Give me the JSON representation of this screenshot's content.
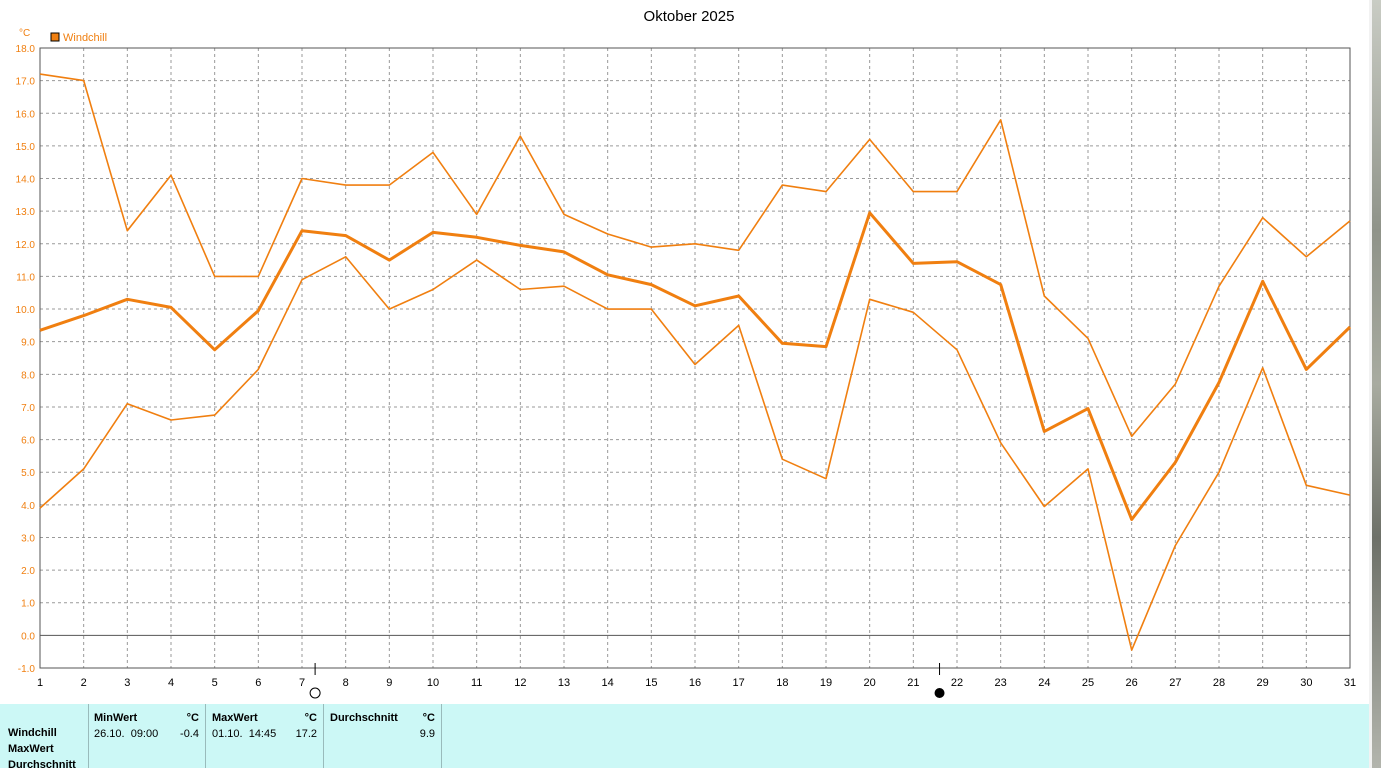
{
  "chart_data": {
    "type": "line",
    "title": "Oktober 2025",
    "yunit": "°C",
    "legend": [
      {
        "label": "Windchill",
        "color": "#f07f10"
      }
    ],
    "ylim": [
      -1.0,
      18.0
    ],
    "yticks": [
      "18.0",
      "17.0",
      "16.0",
      "15.0",
      "14.0",
      "13.0",
      "12.0",
      "11.0",
      "10.0",
      "9.0",
      "8.0",
      "7.0",
      "6.0",
      "5.0",
      "4.0",
      "3.0",
      "2.0",
      "1.0",
      "0.0",
      "-1.0"
    ],
    "x": [
      "1",
      "2",
      "3",
      "4",
      "5",
      "6",
      "7",
      "8",
      "9",
      "10",
      "11",
      "12",
      "13",
      "14",
      "15",
      "16",
      "17",
      "18",
      "19",
      "20",
      "21",
      "22",
      "23",
      "24",
      "25",
      "26",
      "27",
      "28",
      "29",
      "30",
      "31"
    ],
    "grid": true,
    "series": [
      {
        "values": [
          17.2,
          17.0,
          12.4,
          14.1,
          11.0,
          11.0,
          14.0,
          13.8,
          13.8,
          14.8,
          12.9,
          15.3,
          12.9,
          12.3,
          11.9,
          12.0,
          11.8,
          13.8,
          13.6,
          15.2,
          13.6,
          13.6,
          15.8,
          10.4,
          9.1,
          6.1,
          7.7,
          10.7,
          12.8,
          11.6,
          12.7
        ]
      },
      {
        "values": [
          9.35,
          9.8,
          10.3,
          10.05,
          8.75,
          9.95,
          12.4,
          12.25,
          11.5,
          12.35,
          12.2,
          11.95,
          11.75,
          11.05,
          10.75,
          10.1,
          10.4,
          8.95,
          8.85,
          12.95,
          11.4,
          11.45,
          10.75,
          6.25,
          6.95,
          3.55,
          5.3,
          7.75,
          10.85,
          8.15,
          9.45
        ]
      },
      {
        "values": [
          3.9,
          5.1,
          7.1,
          6.6,
          6.75,
          8.15,
          10.9,
          11.6,
          10.0,
          10.6,
          11.5,
          10.6,
          10.7,
          10.0,
          10.0,
          8.3,
          9.5,
          5.4,
          4.8,
          10.3,
          9.9,
          8.75,
          5.9,
          3.95,
          5.1,
          -0.45,
          2.75,
          5.0,
          8.2,
          4.6,
          4.3
        ]
      }
    ],
    "moon_phases": [
      {
        "day": 7.3,
        "phase": "full"
      },
      {
        "day": 21.6,
        "phase": "new"
      }
    ]
  },
  "stats": {
    "rows": [
      "Windchill",
      "MaxWert",
      "Durchschnitt"
    ],
    "min": {
      "head": "MinWert",
      "unit": "°C",
      "date": "26.10.  09:00",
      "value": "-0.4"
    },
    "max": {
      "head": "MaxWert",
      "unit": "°C",
      "date": "01.10.  14:45",
      "value": "17.2"
    },
    "avg": {
      "head": "Durchschnitt",
      "unit": "°C",
      "value": "9.9"
    }
  }
}
